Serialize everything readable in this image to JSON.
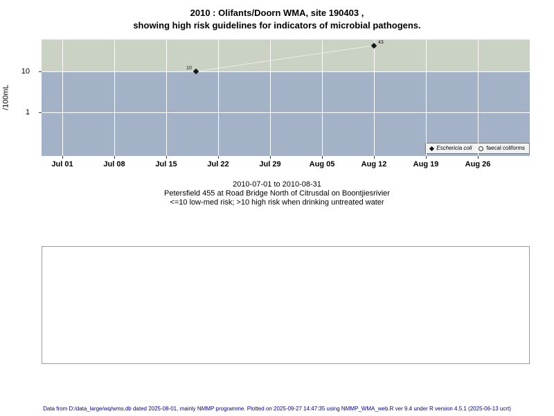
{
  "title": {
    "line1": "2010 : Olifants/Doorn WMA, site 190403 ,",
    "line2": "showing high risk guidelines for indicators of microbial pathogens."
  },
  "chart_data": {
    "type": "scatter",
    "title": "2010 : Olifants/Doorn WMA, site 190403 , showing high risk guidelines for indicators of microbial pathogens.",
    "xlabel": "",
    "ylabel": "/100mL",
    "y_scale": "log10",
    "grid": true,
    "legend_position": "bottom-right",
    "x_range": {
      "start": "2010-07-01",
      "end": "2010-08-31"
    },
    "threshold": 10,
    "y_ticks": [
      {
        "value": 10,
        "label": "10"
      },
      {
        "value": 1,
        "label": "1"
      }
    ],
    "x_ticks": [
      {
        "label": "Jul 01",
        "day": 0
      },
      {
        "label": "Jul 08",
        "day": 7
      },
      {
        "label": "Jul 15",
        "day": 14
      },
      {
        "label": "Jul 22",
        "day": 21
      },
      {
        "label": "Jul 29",
        "day": 28
      },
      {
        "label": "Aug 05",
        "day": 35
      },
      {
        "label": "Aug 12",
        "day": 42
      },
      {
        "label": "Aug 19",
        "day": 49
      },
      {
        "label": "Aug 26",
        "day": 56
      }
    ],
    "bands": [
      {
        "name": "high-risk",
        "range": "> 10 /100mL"
      },
      {
        "name": "low-med-risk",
        "range": "<= 10 /100mL"
      }
    ],
    "series": [
      {
        "name": "Eschericia coli",
        "marker": "filled-diamond",
        "points": [
          {
            "date": "2010-07-19",
            "day": 18,
            "value": 10,
            "label": "10",
            "label_side": "left"
          },
          {
            "date": "2010-08-12",
            "day": 42,
            "value": 43,
            "label": "43",
            "label_side": "right"
          }
        ]
      },
      {
        "name": "faecal coliforms",
        "marker": "open-circle",
        "points": []
      }
    ]
  },
  "caption": {
    "line1": "2010-07-01 to 2010-08-31",
    "line2": "Petersfield 455 at Road Bridge North of Citrusdal on Boontjiesrivier",
    "line3": "<=10 low-med risk; >10 high risk when drinking untreated water"
  },
  "footer": {
    "text": "Data from D:/data_large/wq/wms.db dated 2025-08-01, mainly NMMP programme. Plotted on 2025-09-27 14:47:35 using NMMP_WMA_web.R ver 9.4 under R version 4.5.1 (2025-06-13 ucrt)"
  },
  "colors": {
    "band_high": "#c9d2c3",
    "band_low": "#a3b2c6",
    "grid": "#ffffff",
    "marker": "#16161d",
    "connector": "#ebebeb",
    "footer_text": "#00008b"
  }
}
